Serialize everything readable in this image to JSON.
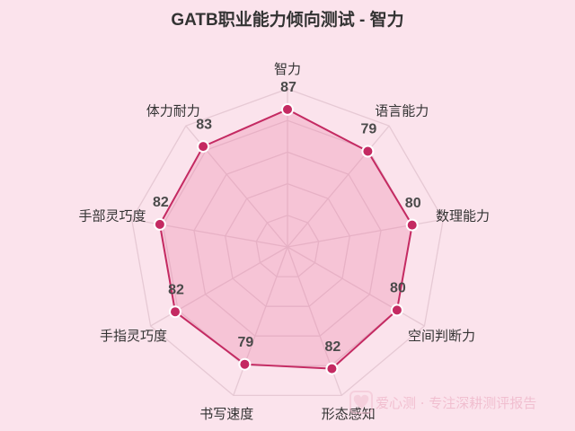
{
  "chart_data": {
    "type": "radar",
    "title": "GATB职业能力倾向测试 - 智力",
    "categories": [
      "智力",
      "语言能力",
      "数理能力",
      "空间判断力",
      "形态感知",
      "书写速度",
      "手指灵巧度",
      "手部灵巧度",
      "体力耐力"
    ],
    "values": [
      87,
      79,
      80,
      80,
      82,
      79,
      82,
      82,
      83
    ],
    "value_labels": [
      "87",
      "79",
      "80",
      "80",
      "82",
      "79",
      "82",
      "82",
      "83"
    ],
    "grid_levels": 5,
    "grid": true,
    "legend": "none"
  },
  "watermark": {
    "icon": "heart-icon",
    "text": "爱心测 · 专注深耕测评报告"
  },
  "colors": {
    "background": "#fbe3ec",
    "series": "#c42a62",
    "fill": "#e8749e",
    "grid": "#e6c9d4"
  }
}
